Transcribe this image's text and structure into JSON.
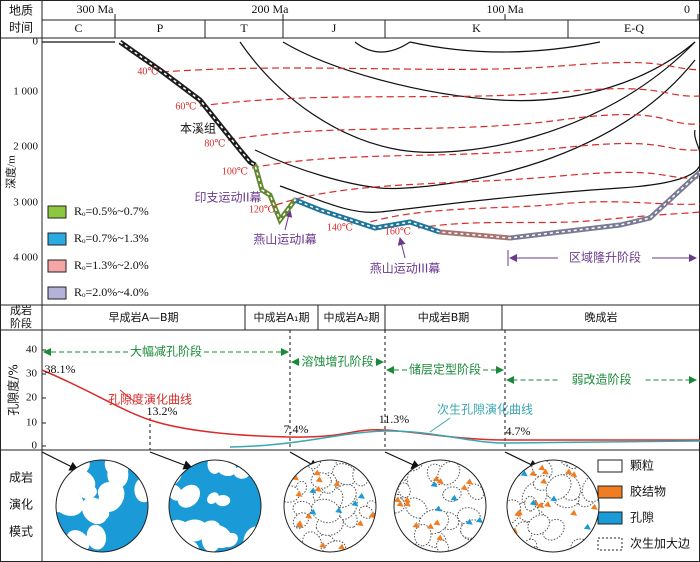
{
  "time_axis": {
    "label": [
      "地质",
      "时间"
    ],
    "ticks": [
      "300 Ma",
      "200 Ma",
      "100 Ma",
      "0"
    ],
    "periods": [
      "C",
      "P",
      "T",
      "J",
      "K",
      "E-Q"
    ]
  },
  "burial": {
    "depth_label": "深度/m",
    "depth_ticks": [
      "0",
      "1 000",
      "2 000",
      "3 000",
      "4 000"
    ],
    "temperatures": [
      "40℃",
      "60℃",
      "80℃",
      "100℃",
      "120℃",
      "140℃",
      "160℃"
    ],
    "formation": "本溪组",
    "events": [
      "印支运动II幕",
      "燕山运动I幕",
      "燕山运动III幕",
      "区域隆升阶段"
    ],
    "legend": [
      "Rₒ=0.5%~0.7%",
      "Rₒ=0.7%~1.3%",
      "Rₒ=1.3%~2.0%",
      "Rₒ=2.0%~4.0%"
    ]
  },
  "stages": {
    "label": [
      "成岩",
      "阶段"
    ],
    "items": [
      "早成岩A—B期",
      "中成岩A₁期",
      "中成岩A₂期",
      "中成岩B期",
      "晚成岩"
    ]
  },
  "porosity": {
    "label": "孔隙度/%",
    "ticks": [
      "40",
      "30",
      "20",
      "10",
      "0"
    ],
    "phases": [
      "大幅减孔阶段",
      "溶蚀增孔阶段",
      "储层定型阶段",
      "弱改造阶段"
    ],
    "values": [
      "38.1%",
      "13.2%",
      "7.4%",
      "11.3%",
      "4.7%"
    ],
    "curve_labels": [
      "孔隙度演化曲线",
      "次生孔隙演化曲线"
    ]
  },
  "model": {
    "label": [
      "成岩",
      "演化",
      "模式"
    ],
    "legend": [
      "颗粒",
      "胶结物",
      "孔隙",
      "次生加大边"
    ]
  }
}
